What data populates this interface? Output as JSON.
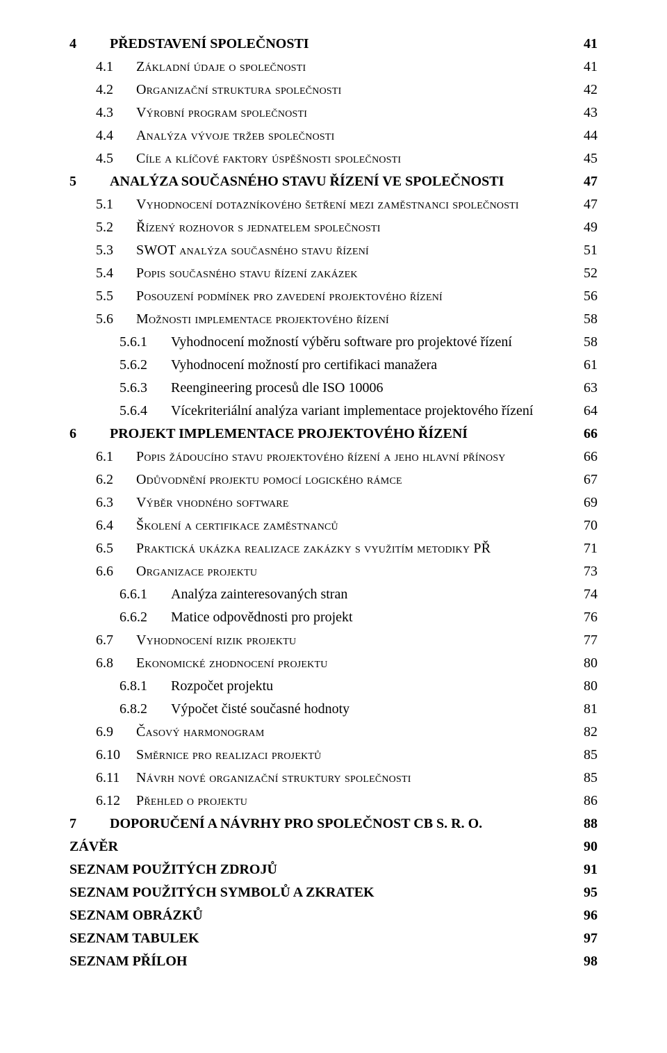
{
  "text_color": "#000000",
  "background_color": "#ffffff",
  "entries": [
    {
      "level": "chapter",
      "num": "4",
      "title": "PŘEDSTAVENÍ SPOLEČNOSTI",
      "page": "41"
    },
    {
      "level": "section",
      "num": "4.1",
      "title": "Základní údaje o společnosti",
      "page": "41"
    },
    {
      "level": "section",
      "num": "4.2",
      "title": "Organizační struktura společnosti",
      "page": "42"
    },
    {
      "level": "section",
      "num": "4.3",
      "title": "Výrobní program společnosti",
      "page": "43"
    },
    {
      "level": "section",
      "num": "4.4",
      "title": "Analýza vývoje tržeb společnosti",
      "page": "44"
    },
    {
      "level": "section",
      "num": "4.5",
      "title": "Cíle a klíčové faktory úspěšnosti společnosti",
      "page": "45"
    },
    {
      "level": "chapter",
      "num": "5",
      "title": "ANALÝZA SOUČASNÉHO STAVU ŘÍZENÍ VE SPOLEČNOSTI",
      "page": "47"
    },
    {
      "level": "section",
      "num": "5.1",
      "title": "Vyhodnocení dotazníkového šetření mezi zaměstnanci společnosti",
      "page": "47"
    },
    {
      "level": "section",
      "num": "5.2",
      "title": "Řízený rozhovor s jednatelem společnosti",
      "page": "49"
    },
    {
      "level": "section",
      "num": "5.3",
      "title": "SWOT analýza současného stavu řízení",
      "page": "51"
    },
    {
      "level": "section",
      "num": "5.4",
      "title": "Popis současného stavu řízení zakázek",
      "page": "52"
    },
    {
      "level": "section",
      "num": "5.5",
      "title": "Posouzení podmínek pro zavedení projektového řízení",
      "page": "56"
    },
    {
      "level": "section",
      "num": "5.6",
      "title": "Možnosti implementace projektového řízení",
      "page": "58"
    },
    {
      "level": "subsection",
      "num": "5.6.1",
      "title": "Vyhodnocení možností výběru software pro projektové řízení",
      "page": "58"
    },
    {
      "level": "subsection",
      "num": "5.6.2",
      "title": "Vyhodnocení možností pro certifikaci manažera",
      "page": "61"
    },
    {
      "level": "subsection",
      "num": "5.6.3",
      "title": "Reengineering procesů dle ISO 10006",
      "page": "63"
    },
    {
      "level": "subsection",
      "num": "5.6.4",
      "title": "Vícekriteriální analýza variant implementace projektového řízení",
      "page": "64"
    },
    {
      "level": "chapter",
      "num": "6",
      "title": "PROJEKT IMPLEMENTACE PROJEKTOVÉHO ŘÍZENÍ",
      "page": "66"
    },
    {
      "level": "section",
      "num": "6.1",
      "title": "Popis žádoucího stavu projektového řízení a jeho hlavní přínosy",
      "page": "66"
    },
    {
      "level": "section",
      "num": "6.2",
      "title": "Odůvodnění projektu pomocí logického rámce",
      "page": "67"
    },
    {
      "level": "section",
      "num": "6.3",
      "title": "Výběr vhodného software",
      "page": "69"
    },
    {
      "level": "section",
      "num": "6.4",
      "title": "Školení a certifikace zaměstnanců",
      "page": "70"
    },
    {
      "level": "section",
      "num": "6.5",
      "title": "Praktická ukázka realizace zakázky s využitím metodiky PŘ",
      "page": "71"
    },
    {
      "level": "section",
      "num": "6.6",
      "title": "Organizace projektu",
      "page": "73"
    },
    {
      "level": "subsection",
      "num": "6.6.1",
      "title": "Analýza zainteresovaných stran",
      "page": "74"
    },
    {
      "level": "subsection",
      "num": "6.6.2",
      "title": "Matice odpovědnosti pro projekt",
      "page": "76"
    },
    {
      "level": "section",
      "num": "6.7",
      "title": "Vyhodnocení rizik projektu",
      "page": "77"
    },
    {
      "level": "section",
      "num": "6.8",
      "title": "Ekonomické zhodnocení projektu",
      "page": "80"
    },
    {
      "level": "subsection",
      "num": "6.8.1",
      "title": "Rozpočet projektu",
      "page": "80"
    },
    {
      "level": "subsection",
      "num": "6.8.2",
      "title": "Výpočet čisté současné hodnoty",
      "page": "81"
    },
    {
      "level": "section",
      "num": "6.9",
      "title": "Časový harmonogram",
      "page": "82"
    },
    {
      "level": "section",
      "num": "6.10",
      "title": "Směrnice pro realizaci projektů",
      "page": "85"
    },
    {
      "level": "section",
      "num": "6.11",
      "title": "Návrh nové organizační struktury společnosti",
      "page": "85"
    },
    {
      "level": "section",
      "num": "6.12",
      "title": "Přehled o projektu",
      "page": "86"
    },
    {
      "level": "chapter",
      "num": "7",
      "title": "DOPORUČENÍ A NÁVRHY PRO SPOLEČNOST CB S. R. O.",
      "page": "88"
    },
    {
      "level": "heading",
      "num": "",
      "title": "ZÁVĚR",
      "page": "90"
    },
    {
      "level": "heading",
      "num": "",
      "title": "SEZNAM POUŽITÝCH ZDROJŮ",
      "page": "91"
    },
    {
      "level": "heading",
      "num": "",
      "title": "SEZNAM POUŽITÝCH SYMBOLŮ A ZKRATEK",
      "page": "95"
    },
    {
      "level": "heading",
      "num": "",
      "title": "SEZNAM OBRÁZKŮ",
      "page": "96"
    },
    {
      "level": "heading",
      "num": "",
      "title": "SEZNAM TABULEK",
      "page": "97"
    },
    {
      "level": "heading",
      "num": "",
      "title": "SEZNAM PŘÍLOH",
      "page": "98"
    }
  ]
}
